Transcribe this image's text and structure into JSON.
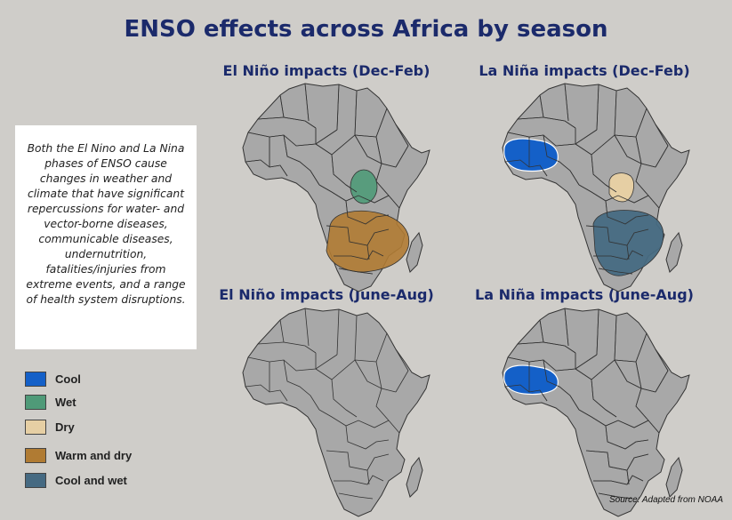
{
  "title": "ENSO effects across Africa by season",
  "maps": [
    {
      "label": "El Niño impacts (Dec-Feb)",
      "regions": [
        "wet",
        "warm_dry"
      ]
    },
    {
      "label": "La Niña impacts (Dec-Feb)",
      "regions": [
        "cool",
        "dry",
        "cool_wet"
      ]
    },
    {
      "label": "El Niño impacts (June-Aug)",
      "regions": []
    },
    {
      "label": "La Niña impacts (June-Aug)",
      "regions": [
        "cool"
      ]
    }
  ],
  "description": "Both the El Nino and La Nina phases of ENSO cause changes in weather and climate that have significant repercussions for water- and vector-borne diseases, communicable diseases, undernutrition, fatalities/injuries from extreme events, and a range of health system disruptions.",
  "legend": [
    {
      "key": "cool",
      "label": "Cool",
      "color": "#1460c8"
    },
    {
      "key": "wet",
      "label": "Wet",
      "color": "#4f9a78"
    },
    {
      "key": "dry",
      "label": "Dry",
      "color": "#e6cfa4"
    },
    {
      "key": "warm_dry",
      "label": "Warm and dry",
      "color": "#b07b33"
    },
    {
      "key": "cool_wet",
      "label": "Cool and wet",
      "color": "#466a82"
    }
  ],
  "colors": {
    "land": "#a8a8a8",
    "border": "#333333",
    "title": "#1b2a6b",
    "background": "#cfcdc9"
  },
  "source": "Source: Adapted from NOAA"
}
